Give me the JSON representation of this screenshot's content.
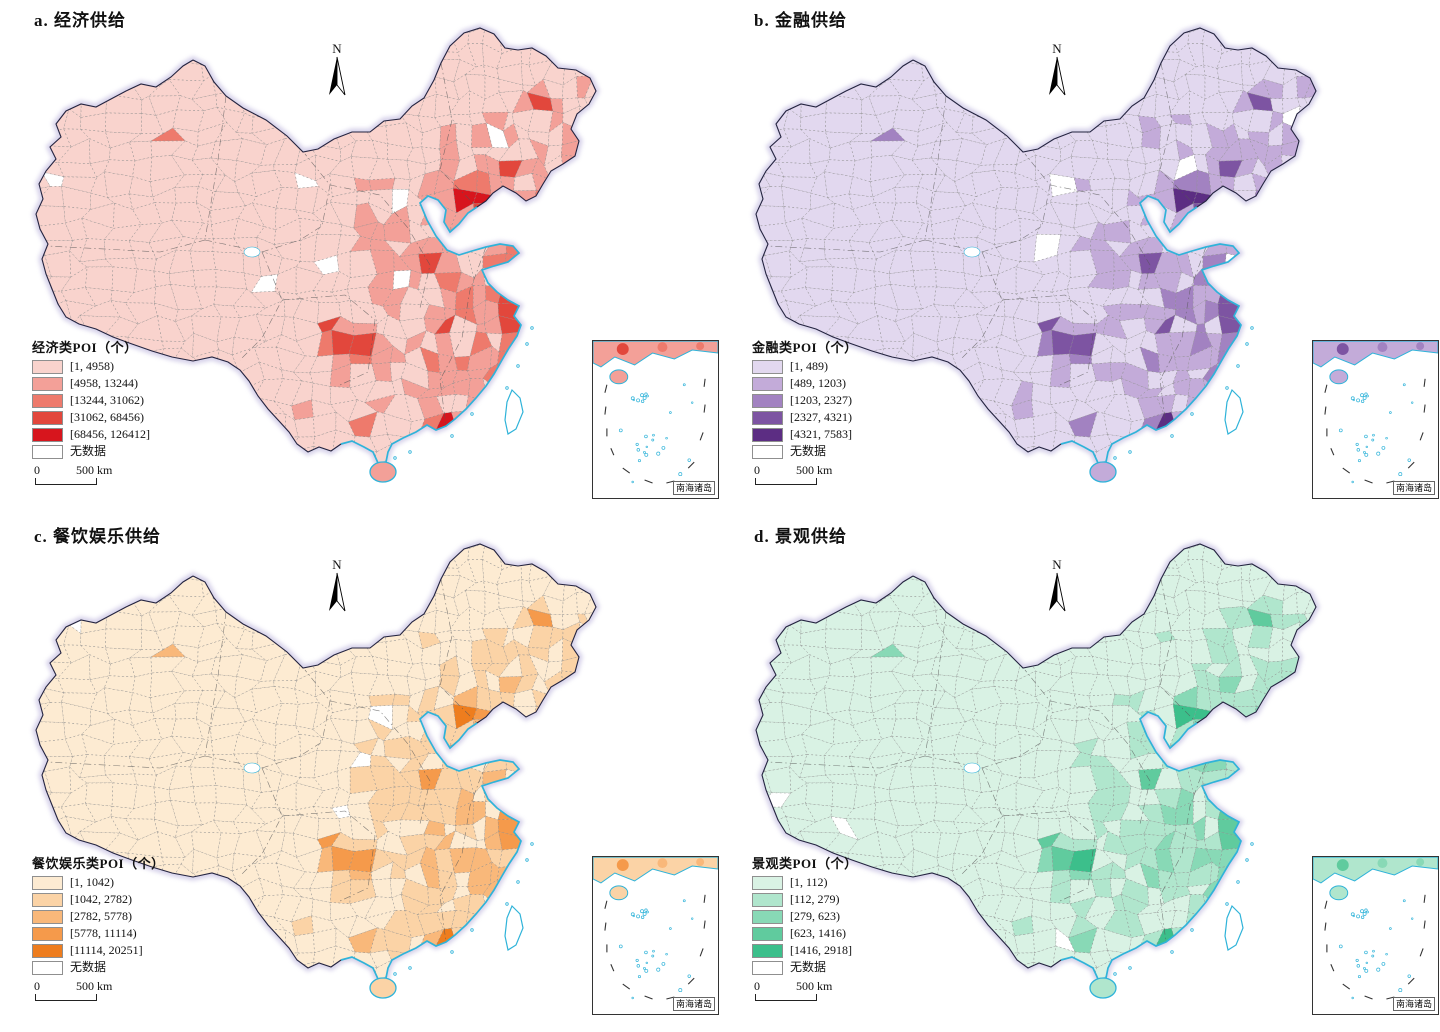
{
  "map_style": {
    "boundary_color": "#23233f",
    "coast_color": "#2fb3d9",
    "halo_color": "#b4abd8",
    "cell_border_color": "#8f8f8f",
    "no_data_color": "#ffffff"
  },
  "panels": [
    {
      "id": "a",
      "title": "a. 经济供给",
      "north_label": "N",
      "legend": {
        "title": "经济类POI（个）",
        "classes": [
          {
            "label": "[1, 4958)",
            "color": "#f9d3cd"
          },
          {
            "label": "[4958, 13244)",
            "color": "#f3a098"
          },
          {
            "label": "[13244, 31062)",
            "color": "#ee7a6c"
          },
          {
            "label": "[31062, 68456)",
            "color": "#e2473c"
          },
          {
            "label": "[68456, 126412]",
            "color": "#d7151d"
          }
        ],
        "no_data_label": "无数据"
      },
      "scale": {
        "zero_label": "0",
        "distance_label": "500 km"
      },
      "inset_label": "南海诸岛"
    },
    {
      "id": "b",
      "title": "b. 金融供给",
      "north_label": "N",
      "legend": {
        "title": "金融类POI（个）",
        "classes": [
          {
            "label": "[1, 489)",
            "color": "#e2d8ef"
          },
          {
            "label": "[489, 1203)",
            "color": "#c3abd9"
          },
          {
            "label": "[1203, 2327)",
            "color": "#a282c1"
          },
          {
            "label": "[2327, 4321)",
            "color": "#7d54a2"
          },
          {
            "label": "[4321, 7583]",
            "color": "#5c2d83"
          }
        ],
        "no_data_label": "无数据"
      },
      "scale": {
        "zero_label": "0",
        "distance_label": "500 km"
      },
      "inset_label": "南海诸岛"
    },
    {
      "id": "c",
      "title": "c. 餐饮娱乐供给",
      "north_label": "N",
      "legend": {
        "title": "餐饮娱乐类POI（个）",
        "classes": [
          {
            "label": "[1, 1042)",
            "color": "#fdebd2"
          },
          {
            "label": "[1042, 2782)",
            "color": "#fbd3a6"
          },
          {
            "label": "[2782, 5778)",
            "color": "#f9b87a"
          },
          {
            "label": "[5778, 11114)",
            "color": "#f59a4b"
          },
          {
            "label": "[11114, 20251]",
            "color": "#ee7d1e"
          }
        ],
        "no_data_label": "无数据"
      },
      "scale": {
        "zero_label": "0",
        "distance_label": "500 km"
      },
      "inset_label": "南海诸岛"
    },
    {
      "id": "d",
      "title": "d. 景观供给",
      "north_label": "N",
      "legend": {
        "title": "景观类POI（个）",
        "classes": [
          {
            "label": "[1, 112)",
            "color": "#d9f2e4"
          },
          {
            "label": "[112, 279)",
            "color": "#b0e6cd"
          },
          {
            "label": "[279, 623)",
            "color": "#88d9b6"
          },
          {
            "label": "[623, 1416)",
            "color": "#60cb9e"
          },
          {
            "label": "[1416, 2918]",
            "color": "#3cbf8b"
          }
        ],
        "no_data_label": "无数据"
      },
      "scale": {
        "zero_label": "0",
        "distance_label": "500 km"
      },
      "inset_label": "南海诸岛"
    }
  ]
}
